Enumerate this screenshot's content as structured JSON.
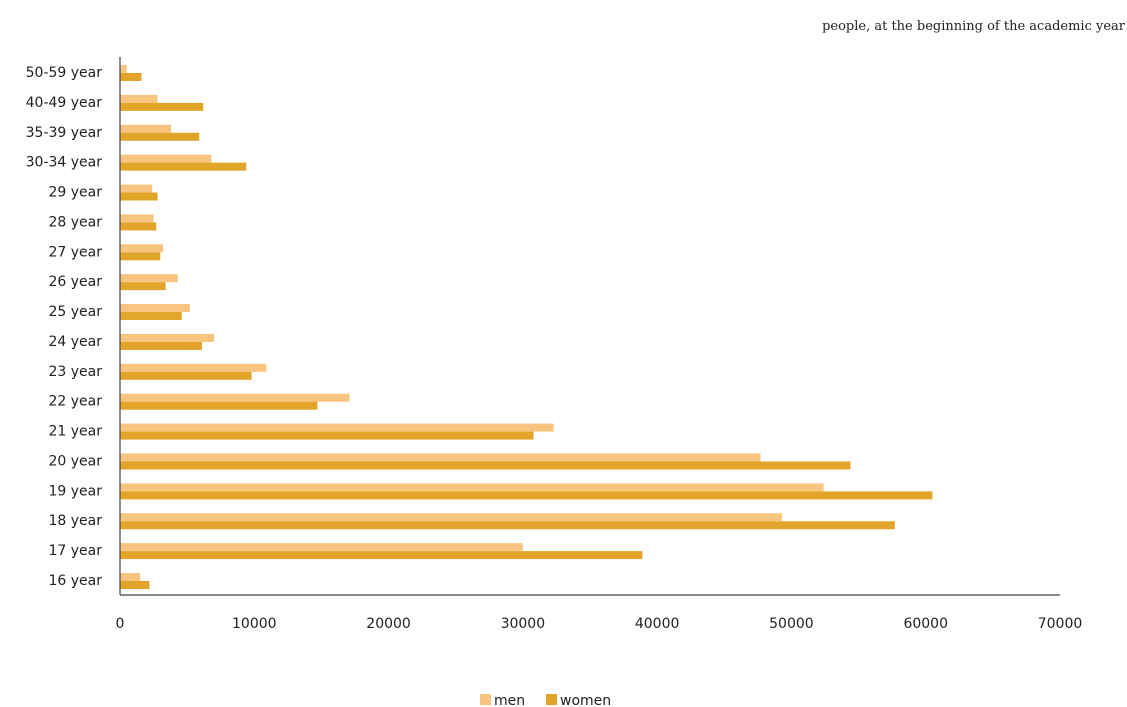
{
  "chart_data": {
    "type": "bar",
    "orientation": "horizontal",
    "subtitle": "people, at the beginning of the academic year",
    "categories": [
      "16 year",
      "17 year",
      "18 year",
      "19 year",
      "20 year",
      "21 year",
      "22 year",
      "23 year",
      "24 year",
      "25 year",
      "26 year",
      "27 year",
      "28 year",
      "29 year",
      "30-34 year",
      "35-39 year",
      "40-49 year",
      "50-59 year"
    ],
    "series": [
      {
        "name": "men",
        "color": "#f7c57f",
        "values": [
          1500,
          30000,
          49300,
          52400,
          47700,
          32300,
          17100,
          10900,
          7000,
          5200,
          4300,
          3200,
          2500,
          2400,
          6800,
          3800,
          2800,
          500
        ]
      },
      {
        "name": "women",
        "color": "#e2a52a",
        "values": [
          2200,
          38900,
          57700,
          60500,
          54400,
          30800,
          14700,
          9800,
          6100,
          4600,
          3400,
          3000,
          2700,
          2800,
          9400,
          5900,
          6200,
          1600
        ]
      }
    ],
    "x_ticks": [
      "0",
      "10000",
      "20000",
      "30000",
      "40000",
      "50000",
      "60000",
      "70000"
    ],
    "xlim": [
      0,
      70000
    ],
    "grid": false,
    "legend_position": "bottom-center"
  }
}
